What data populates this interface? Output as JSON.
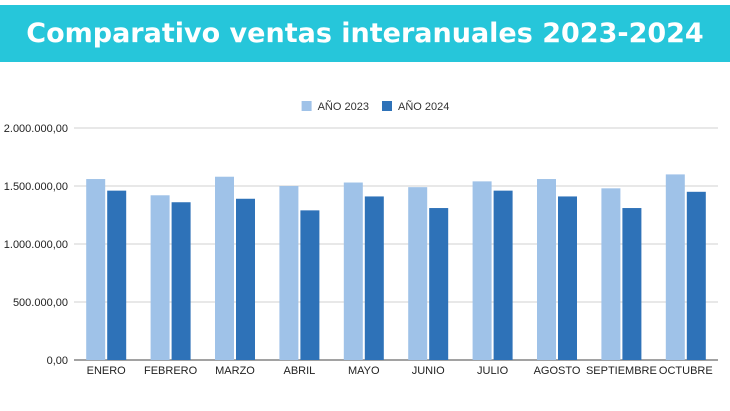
{
  "header": {
    "title": "Comparativo ventas interanuales 2023-2024",
    "banner_color": "#26c6da"
  },
  "chart_data": {
    "type": "bar",
    "title": "",
    "xlabel": "",
    "ylabel": "",
    "categories": [
      "ENERO",
      "FEBRERO",
      "MARZO",
      "ABRIL",
      "MAYO",
      "JUNIO",
      "JULIO",
      "AGOSTO",
      "SEPTIEMBRE",
      "OCTUBRE"
    ],
    "series": [
      {
        "name": "AÑO 2023",
        "color": "#9fc2e8",
        "values": [
          1560000,
          1420000,
          1580000,
          1500000,
          1530000,
          1490000,
          1540000,
          1560000,
          1480000,
          1600000
        ]
      },
      {
        "name": "AÑO 2024",
        "color": "#2e72b8",
        "values": [
          1460000,
          1360000,
          1390000,
          1290000,
          1410000,
          1310000,
          1460000,
          1410000,
          1310000,
          1450000
        ]
      }
    ],
    "ylim": [
      0,
      2000000
    ],
    "yticks": [
      0,
      500000,
      1000000,
      1500000,
      2000000
    ],
    "ytick_labels": [
      "0,00",
      "500.000,00",
      "1.000.000,00",
      "1.500.000,00",
      "2.000.000,00"
    ],
    "grid": true,
    "legend_position": "top-center"
  }
}
